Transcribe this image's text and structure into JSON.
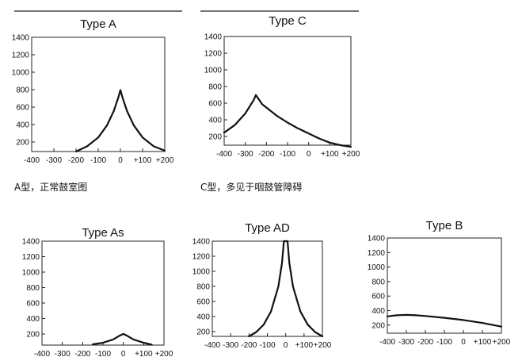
{
  "chart_data": [
    {
      "id": "type-a",
      "type": "line",
      "title": "Type A",
      "caption": "A型，正常鼓室图",
      "xlabel": "",
      "ylabel": "",
      "x_ticks": [
        "-400",
        "-300",
        "-200",
        "-100",
        "0",
        "+100",
        "+200"
      ],
      "y_ticks": [
        "1400",
        "1200",
        "1000",
        "800",
        "600",
        "400",
        "200"
      ],
      "xlim": [
        -400,
        200
      ],
      "ylim": [
        100,
        1400
      ],
      "x": [
        -200,
        -150,
        -100,
        -60,
        -30,
        -10,
        0,
        10,
        30,
        60,
        100,
        150,
        200
      ],
      "y": [
        100,
        160,
        260,
        400,
        560,
        710,
        800,
        710,
        560,
        400,
        260,
        160,
        110
      ]
    },
    {
      "id": "type-c",
      "type": "line",
      "title": "Type C",
      "caption": "C型，多见于咽鼓管障碍",
      "xlabel": "",
      "ylabel": "",
      "x_ticks": [
        "-400",
        "-300",
        "-200",
        "-100",
        "0",
        "+100",
        "+200"
      ],
      "y_ticks": [
        "1400",
        "1200",
        "1000",
        "800",
        "600",
        "400",
        "200"
      ],
      "xlim": [
        -400,
        200
      ],
      "ylim": [
        100,
        1400
      ],
      "x": [
        -400,
        -350,
        -300,
        -260,
        -250,
        -220,
        -150,
        -100,
        -50,
        0,
        50,
        100,
        150,
        200
      ],
      "y": [
        250,
        340,
        480,
        640,
        700,
        590,
        450,
        370,
        300,
        240,
        180,
        130,
        100,
        80
      ]
    },
    {
      "id": "type-as",
      "type": "line",
      "title": "Type As",
      "xlabel": "",
      "ylabel": "",
      "x_ticks": [
        "-400",
        "-300",
        "-200",
        "-100",
        "0",
        "+100",
        "+200"
      ],
      "y_ticks": [
        "1400",
        "1200",
        "1000",
        "800",
        "600",
        "400",
        "200"
      ],
      "xlim": [
        -400,
        200
      ],
      "ylim": [
        100,
        1400
      ],
      "x": [
        -150,
        -100,
        -50,
        -20,
        0,
        20,
        50,
        100,
        140
      ],
      "y": [
        110,
        130,
        170,
        215,
        240,
        215,
        170,
        130,
        105
      ]
    },
    {
      "id": "type-ad",
      "type": "line",
      "title": "Type AD",
      "xlabel": "",
      "ylabel": "",
      "x_ticks": [
        "-400",
        "-300",
        "-200",
        "-100",
        "0",
        "+100",
        "+200"
      ],
      "y_ticks": [
        "1400",
        "1200",
        "1000",
        "800",
        "600",
        "400",
        "200"
      ],
      "xlim": [
        -400,
        200
      ],
      "ylim": [
        100,
        1400
      ],
      "x": [
        -200,
        -160,
        -120,
        -80,
        -40,
        -20,
        -10,
        0,
        10,
        20,
        40,
        80,
        120,
        160,
        200
      ],
      "y": [
        100,
        160,
        260,
        440,
        780,
        1100,
        1400,
        1400,
        1400,
        1100,
        780,
        440,
        260,
        160,
        100
      ]
    },
    {
      "id": "type-b",
      "type": "line",
      "title": "Type B",
      "xlabel": "",
      "ylabel": "",
      "x_ticks": [
        "-400",
        "-300",
        "-200",
        "-100",
        "0",
        "+100",
        "+200"
      ],
      "y_ticks": [
        "1400",
        "1200",
        "1000",
        "800",
        "600",
        "400",
        "200"
      ],
      "xlim": [
        -400,
        200
      ],
      "ylim": [
        100,
        1400
      ],
      "x": [
        -400,
        -350,
        -300,
        -250,
        -200,
        -100,
        0,
        100,
        200
      ],
      "y": [
        330,
        345,
        350,
        345,
        335,
        310,
        280,
        240,
        190
      ]
    }
  ]
}
